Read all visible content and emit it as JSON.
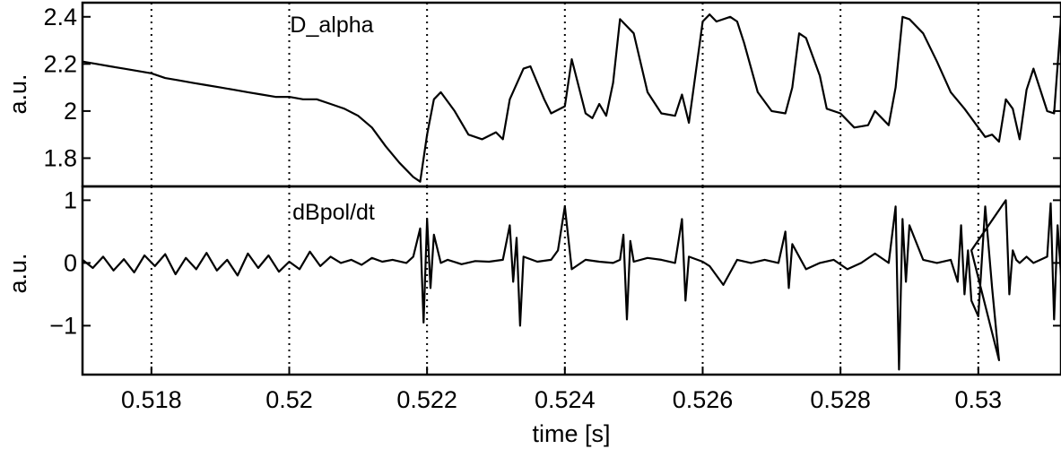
{
  "chart_data": [
    {
      "type": "line",
      "title": "D_alpha",
      "xlabel": "",
      "ylabel": "a.u.",
      "xlim": [
        0.517,
        0.5312
      ],
      "ylim": [
        1.68,
        2.46
      ],
      "yticks": [
        1.8,
        2,
        2.2,
        2.4
      ],
      "ytick_labels": [
        "1.8",
        "2",
        "2.2",
        "2.4"
      ],
      "grid": "vertical dotted at x ticks",
      "series": [
        {
          "x": [
            0.517,
            0.5172,
            0.5174,
            0.5176,
            0.5178,
            0.518,
            0.5182,
            0.5184,
            0.5186,
            0.5188,
            0.519,
            0.5192,
            0.5194,
            0.5196,
            0.5198,
            0.52,
            0.5202,
            0.5204,
            0.5206,
            0.5208,
            0.521,
            0.5212,
            0.5214,
            0.5216,
            0.5218,
            0.5219,
            0.522,
            0.5221,
            0.5222,
            0.5224,
            0.5226,
            0.5228,
            0.523,
            0.5231,
            0.5232,
            0.5234,
            0.5235,
            0.5237,
            0.5238,
            0.524,
            0.5241,
            0.5243,
            0.5244,
            0.5245,
            0.5246,
            0.5247,
            0.5248,
            0.525,
            0.5252,
            0.5254,
            0.5256,
            0.5257,
            0.5258,
            0.526,
            0.5261,
            0.5262,
            0.5264,
            0.5265,
            0.5266,
            0.5268,
            0.527,
            0.5272,
            0.5273,
            0.5274,
            0.5275,
            0.5277,
            0.5278,
            0.528,
            0.5282,
            0.5284,
            0.5285,
            0.5287,
            0.5288,
            0.5289,
            0.529,
            0.5292,
            0.5294,
            0.5296,
            0.5298,
            0.53,
            0.5301,
            0.5302,
            0.5303,
            0.5304,
            0.5305,
            0.5306,
            0.5307,
            0.5308,
            0.531,
            0.5311,
            0.5312
          ],
          "y": [
            2.21,
            2.2,
            2.19,
            2.18,
            2.17,
            2.16,
            2.14,
            2.13,
            2.12,
            2.11,
            2.1,
            2.09,
            2.08,
            2.07,
            2.06,
            2.06,
            2.05,
            2.05,
            2.03,
            2.01,
            1.98,
            1.93,
            1.85,
            1.78,
            1.72,
            1.7,
            1.9,
            2.05,
            2.08,
            2.0,
            1.9,
            1.88,
            1.91,
            1.88,
            2.05,
            2.18,
            2.19,
            2.05,
            1.99,
            2.02,
            2.22,
            1.99,
            1.97,
            2.03,
            1.98,
            2.12,
            2.39,
            2.33,
            2.08,
            1.99,
            1.98,
            2.07,
            1.95,
            2.38,
            2.41,
            2.38,
            2.4,
            2.38,
            2.29,
            2.08,
            2.0,
            1.99,
            2.1,
            2.33,
            2.31,
            2.15,
            2.01,
            1.99,
            1.93,
            1.94,
            2.0,
            1.94,
            2.1,
            2.4,
            2.39,
            2.33,
            2.21,
            2.08,
            2.01,
            1.93,
            1.89,
            1.9,
            1.87,
            2.05,
            2.01,
            1.88,
            2.09,
            2.18,
            2.0,
            1.99,
            2.39
          ]
        }
      ]
    },
    {
      "type": "line",
      "title": "dBpol/dt",
      "xlabel": "time [s]",
      "ylabel": "a.u.",
      "xlim": [
        0.517,
        0.5312
      ],
      "ylim": [
        -1.78,
        1.22
      ],
      "yticks": [
        -1,
        0,
        1
      ],
      "ytick_labels": [
        "−1",
        "0",
        "1"
      ],
      "xticks": [
        0.518,
        0.52,
        0.522,
        0.524,
        0.526,
        0.528,
        0.53
      ],
      "xtick_labels": [
        "0.518",
        "0.52",
        "0.522",
        "0.524",
        "0.526",
        "0.528",
        "0.53"
      ],
      "grid": "vertical dotted at x ticks",
      "series": [
        {
          "x": [
            0.517,
            0.51715,
            0.5173,
            0.51745,
            0.5176,
            0.51775,
            0.5179,
            0.51805,
            0.5182,
            0.51835,
            0.5185,
            0.51865,
            0.5188,
            0.51895,
            0.5191,
            0.51925,
            0.5194,
            0.51955,
            0.5197,
            0.51985,
            0.52,
            0.52015,
            0.5203,
            0.52045,
            0.5206,
            0.52075,
            0.5209,
            0.52105,
            0.5212,
            0.52135,
            0.5215,
            0.5217,
            0.5218,
            0.5219,
            0.52195,
            0.522,
            0.52205,
            0.5221,
            0.5222,
            0.5223,
            0.5225,
            0.5227,
            0.5229,
            0.5231,
            0.5232,
            0.52325,
            0.5233,
            0.52335,
            0.5234,
            0.5236,
            0.5238,
            0.5239,
            0.524,
            0.5241,
            0.5243,
            0.5245,
            0.5247,
            0.5248,
            0.52485,
            0.5249,
            0.52495,
            0.525,
            0.5252,
            0.5254,
            0.5256,
            0.5257,
            0.52575,
            0.5258,
            0.526,
            0.5261,
            0.5263,
            0.5265,
            0.5267,
            0.5269,
            0.5271,
            0.5272,
            0.52725,
            0.5273,
            0.5275,
            0.5277,
            0.5279,
            0.5281,
            0.5283,
            0.5285,
            0.5287,
            0.5288,
            0.52885,
            0.5289,
            0.52895,
            0.529,
            0.5292,
            0.5294,
            0.5296,
            0.5297,
            0.52975,
            0.5298,
            0.52985,
            0.5299,
            0.53,
            0.5301,
            0.5302,
            0.5303,
            0.5299,
            0.5304,
            0.53045,
            0.5305,
            0.53055,
            0.5306,
            0.5307,
            0.5308,
            0.5309,
            0.531,
            0.53105,
            0.5311,
            0.53115,
            0.5312
          ],
          "y": [
            0.05,
            -0.08,
            0.1,
            -0.12,
            0.06,
            -0.15,
            0.12,
            -0.05,
            0.14,
            -0.18,
            0.08,
            -0.1,
            0.16,
            -0.12,
            0.05,
            -0.2,
            0.15,
            -0.08,
            0.12,
            -0.14,
            0.02,
            -0.1,
            0.18,
            -0.05,
            0.1,
            0.0,
            0.05,
            -0.03,
            0.08,
            0.02,
            0.05,
            0.0,
            0.1,
            0.55,
            -0.95,
            0.7,
            -0.4,
            0.45,
            0.0,
            0.05,
            -0.02,
            0.03,
            0.02,
            0.05,
            0.6,
            -0.3,
            0.4,
            -1.0,
            0.1,
            0.02,
            0.05,
            0.2,
            0.9,
            -0.1,
            0.05,
            0.02,
            0.0,
            0.05,
            0.45,
            -0.9,
            0.35,
            0.02,
            0.08,
            0.05,
            0.0,
            0.7,
            -0.6,
            0.1,
            0.02,
            -0.05,
            -0.35,
            0.05,
            0.0,
            0.05,
            0.0,
            0.5,
            -0.4,
            0.3,
            -0.1,
            0.0,
            0.05,
            -0.1,
            0.0,
            0.15,
            0.0,
            0.9,
            -1.7,
            0.7,
            -0.3,
            0.6,
            0.05,
            0.0,
            0.05,
            -0.3,
            0.6,
            -0.5,
            0.2,
            -0.6,
            -0.85,
            0.9,
            -0.4,
            -1.55,
            0.2,
            1.0,
            -0.5,
            0.2,
            0.05,
            0.0,
            0.1,
            0.0,
            0.05,
            0.1,
            0.95,
            -0.9,
            0.6,
            -0.2
          ]
        }
      ]
    }
  ],
  "shared": {
    "xlabel": "time [s]"
  }
}
